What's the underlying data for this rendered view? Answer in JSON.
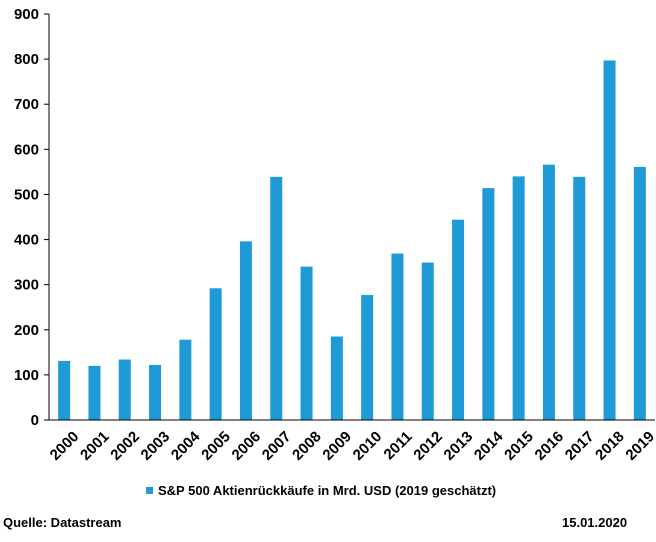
{
  "chart_data": {
    "type": "bar",
    "categories": [
      "2000",
      "2001",
      "2002",
      "2003",
      "2004",
      "2005",
      "2006",
      "2007",
      "2008",
      "2009",
      "2010",
      "2011",
      "2012",
      "2013",
      "2014",
      "2015",
      "2016",
      "2017",
      "2018",
      "2019"
    ],
    "series": [
      {
        "name": "S&P 500 Aktienrückkäufe in Mrd. USD (2019 geschätzt)",
        "values": [
          131,
          120,
          134,
          122,
          178,
          292,
          396,
          539,
          340,
          185,
          277,
          369,
          349,
          444,
          514,
          540,
          566,
          539,
          797,
          561
        ]
      }
    ],
    "yticks": [
      "0",
      "100",
      "200",
      "300",
      "400",
      "500",
      "600",
      "700",
      "800",
      "900"
    ],
    "ylim": [
      0,
      900
    ],
    "grid": false,
    "legend_position": "bottom",
    "bar_color": "#1E9AD6"
  },
  "source": "Quelle: Datastream",
  "date": "15.01.2020"
}
